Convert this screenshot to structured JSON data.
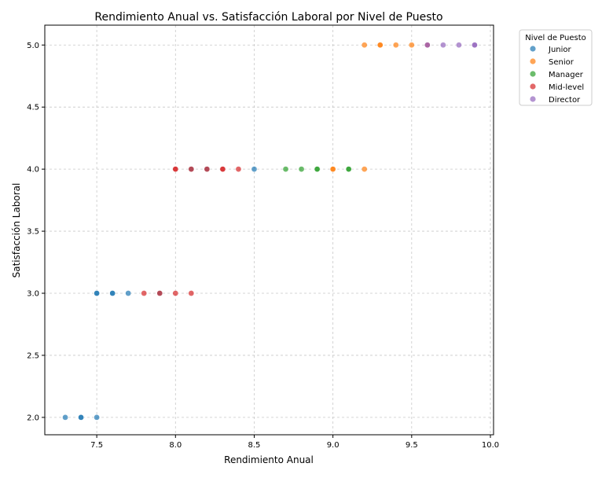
{
  "chart_data": {
    "type": "scatter",
    "title": "Rendimiento Anual vs. Satisfacción Laboral por Nivel de Puesto",
    "xlabel": "Rendimiento Anual",
    "ylabel": "Satisfacción Laboral",
    "xlim": [
      7.17,
      10.02
    ],
    "ylim": [
      1.86,
      5.16
    ],
    "xticks": [
      "7.5",
      "8.0",
      "8.5",
      "9.0",
      "9.5",
      "10.0"
    ],
    "yticks": [
      "2.0",
      "2.5",
      "3.0",
      "3.5",
      "4.0",
      "4.5",
      "5.0"
    ],
    "grid": true,
    "legend": {
      "title": "Nivel de Puesto",
      "position": "upper-right-outside",
      "entries": [
        "Junior",
        "Senior",
        "Manager",
        "Mid-level",
        "Director"
      ]
    },
    "series": [
      {
        "name": "Junior",
        "color": "#1f77b4",
        "points": [
          [
            7.3,
            2.0
          ],
          [
            7.4,
            2.0
          ],
          [
            7.4,
            2.0
          ],
          [
            7.5,
            2.0
          ],
          [
            7.5,
            3.0
          ],
          [
            7.5,
            3.0
          ],
          [
            7.6,
            3.0
          ],
          [
            7.6,
            3.0
          ],
          [
            7.7,
            3.0
          ],
          [
            7.9,
            3.0
          ],
          [
            8.1,
            4.0
          ],
          [
            8.2,
            4.0
          ],
          [
            8.5,
            4.0
          ]
        ]
      },
      {
        "name": "Senior",
        "color": "#ff7f0e",
        "points": [
          [
            9.0,
            4.0
          ],
          [
            9.0,
            4.0
          ],
          [
            9.2,
            4.0
          ],
          [
            9.2,
            5.0
          ],
          [
            9.3,
            5.0
          ],
          [
            9.3,
            5.0
          ],
          [
            9.4,
            5.0
          ],
          [
            9.5,
            5.0
          ]
        ]
      },
      {
        "name": "Manager",
        "color": "#2ca02c",
        "points": [
          [
            8.7,
            4.0
          ],
          [
            8.8,
            4.0
          ],
          [
            8.9,
            4.0
          ],
          [
            8.9,
            4.0
          ],
          [
            9.1,
            4.0
          ],
          [
            9.1,
            4.0
          ]
        ]
      },
      {
        "name": "Mid-level",
        "color": "#d62728",
        "points": [
          [
            7.8,
            3.0
          ],
          [
            7.9,
            3.0
          ],
          [
            8.0,
            3.0
          ],
          [
            8.1,
            3.0
          ],
          [
            8.0,
            4.0
          ],
          [
            8.0,
            4.0
          ],
          [
            8.1,
            4.0
          ],
          [
            8.2,
            4.0
          ],
          [
            8.3,
            4.0
          ],
          [
            8.3,
            4.0
          ],
          [
            8.4,
            4.0
          ],
          [
            9.6,
            5.0
          ]
        ]
      },
      {
        "name": "Director",
        "color": "#9467bd",
        "points": [
          [
            9.6,
            5.0
          ],
          [
            9.7,
            5.0
          ],
          [
            9.8,
            5.0
          ],
          [
            9.9,
            5.0
          ],
          [
            9.9,
            5.0
          ]
        ]
      }
    ]
  }
}
